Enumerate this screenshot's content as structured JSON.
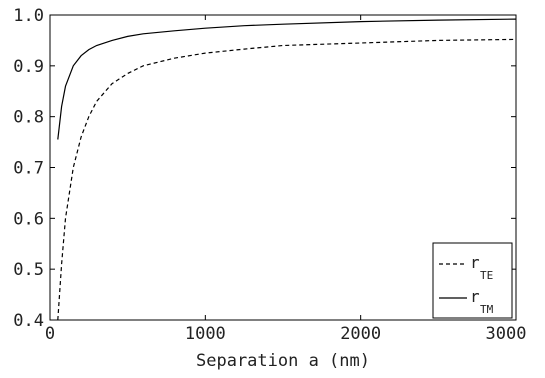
{
  "chart_data": {
    "type": "line",
    "title": "",
    "xlabel": "Separation a (nm)",
    "ylabel": "",
    "xlim": [
      0,
      3000
    ],
    "ylim": [
      0.4,
      1.0
    ],
    "xticks": [
      "0",
      "1000",
      "2000",
      "3000"
    ],
    "yticks": [
      "0.4",
      "0.5",
      "0.6",
      "0.7",
      "0.8",
      "0.9",
      "1.0"
    ],
    "grid": false,
    "legend_position": "bottom-right",
    "series": [
      {
        "name": "r_TE",
        "label_main": "r",
        "label_sub": "TE",
        "style": "dashed",
        "color": "#000000",
        "x": [
          50,
          75,
          100,
          150,
          200,
          250,
          300,
          400,
          500,
          600,
          800,
          1000,
          1250,
          1500,
          2000,
          2500,
          3000
        ],
        "y": [
          0.4,
          0.51,
          0.6,
          0.7,
          0.76,
          0.8,
          0.83,
          0.865,
          0.885,
          0.9,
          0.915,
          0.925,
          0.933,
          0.94,
          0.945,
          0.95,
          0.952
        ]
      },
      {
        "name": "r_TM",
        "label_main": "r",
        "label_sub": "TM",
        "style": "solid",
        "color": "#000000",
        "x": [
          50,
          75,
          100,
          150,
          200,
          250,
          300,
          400,
          500,
          600,
          800,
          1000,
          1250,
          1500,
          2000,
          2500,
          3000
        ],
        "y": [
          0.755,
          0.82,
          0.86,
          0.9,
          0.92,
          0.932,
          0.94,
          0.95,
          0.958,
          0.963,
          0.969,
          0.974,
          0.979,
          0.982,
          0.987,
          0.99,
          0.992
        ]
      }
    ]
  }
}
